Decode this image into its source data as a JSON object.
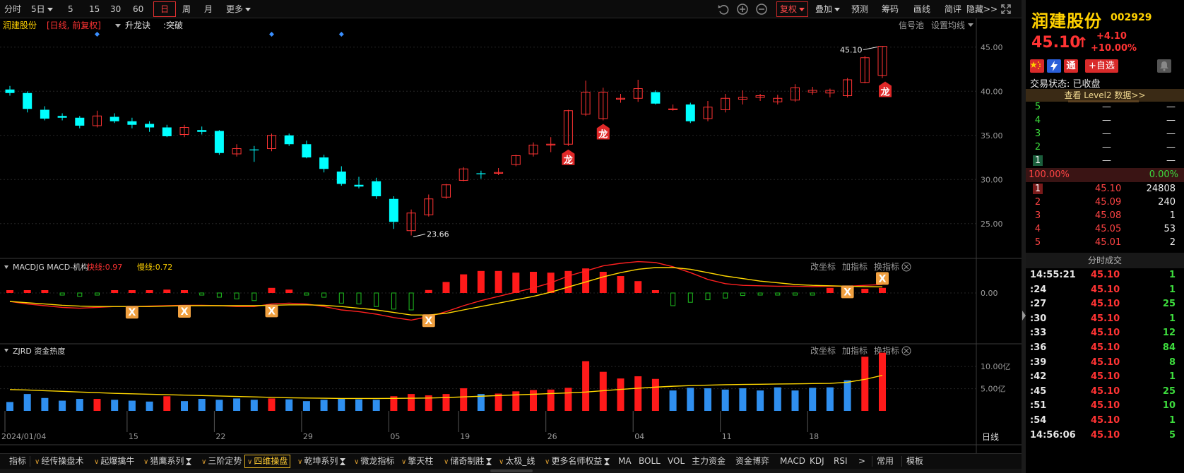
{
  "toolbar": {
    "left": [
      "分时",
      "5日",
      "5",
      "15",
      "30",
      "60",
      "日",
      "周",
      "月",
      "更多"
    ],
    "active": "日",
    "right": [
      "复权",
      "叠加",
      "预测",
      "筹码",
      "画线",
      "简评",
      "隐藏>>"
    ]
  },
  "chart_header": {
    "name": "润建股份",
    "period": "[日线, 前复权]",
    "indicator": "升龙诀",
    "signal": ":突破",
    "right1": "信号池",
    "right2": "设置均线"
  },
  "price_axis": [
    "45.00",
    "40.00",
    "35.00",
    "30.00",
    "25.00"
  ],
  "annotations": {
    "high": "45.10",
    "low": "23.66",
    "dragon": "龙"
  },
  "macd_panel": {
    "title": "MACDJG MACD-机构",
    "fast": "快线:0.97",
    "slow": "慢线:0.72",
    "axis": [
      "0.00"
    ],
    "buttons": [
      "改坐标",
      "加指标",
      "换指标"
    ],
    "cross_mark": "X"
  },
  "fund_panel": {
    "title": "ZJRD 资金热度",
    "axis": [
      "10.00亿",
      "5.00亿"
    ],
    "buttons": [
      "改坐标",
      "加指标",
      "换指标"
    ]
  },
  "date_axis": [
    "2024/01/04",
    "15",
    "22",
    "29",
    "05",
    "19",
    "26",
    "04",
    "11",
    "18"
  ],
  "timeframe_label": "日线",
  "bottom_tabs": [
    "指标",
    "经传操盘术",
    "起爆擒牛",
    "猎鹰系列",
    "三阶定势",
    "四维操盘",
    "乾坤系列",
    "微龙指标",
    "擎天柱",
    "储奇制胜",
    "太极_线",
    "更多名师权益",
    "MA",
    "BOLL",
    "VOL",
    "主力资金",
    "资金博弈",
    "MACD",
    "KDJ",
    "RSI",
    ">",
    "常用",
    "模板"
  ],
  "bottom_selected": "四维操盘",
  "stock": {
    "name": "润建股份",
    "code": "002929",
    "price": "45.10",
    "arrow": "↑",
    "change": "+4.10",
    "change_pct": "+10.00%",
    "icons": [
      "通"
    ],
    "fav": "+自选",
    "trade_state": "交易状态: 已收盘",
    "level2": "查看 Level2 数据>>"
  },
  "order_book": {
    "asks": [
      {
        "level": "5",
        "price": "—",
        "vol": "—"
      },
      {
        "level": "4",
        "price": "—",
        "vol": "—"
      },
      {
        "level": "3",
        "price": "—",
        "vol": "—"
      },
      {
        "level": "2",
        "price": "—",
        "vol": "—"
      },
      {
        "level": "1",
        "price": "—",
        "vol": "—"
      }
    ],
    "bid_ratio": "100.00%",
    "ask_ratio": "0.00%",
    "bids": [
      {
        "level": "1",
        "price": "45.10",
        "vol": "24808"
      },
      {
        "level": "2",
        "price": "45.09",
        "vol": "240"
      },
      {
        "level": "3",
        "price": "45.08",
        "vol": "1"
      },
      {
        "level": "4",
        "price": "45.05",
        "vol": "53"
      },
      {
        "level": "5",
        "price": "45.01",
        "vol": "2"
      }
    ]
  },
  "trades_header": "分时成交",
  "trades": [
    {
      "t": "14:55:21",
      "p": "45.10",
      "q": "1"
    },
    {
      "t": ":24",
      "p": "45.10",
      "q": "1"
    },
    {
      "t": ":27",
      "p": "45.10",
      "q": "25"
    },
    {
      "t": ":30",
      "p": "45.10",
      "q": "1"
    },
    {
      "t": ":33",
      "p": "45.10",
      "q": "12"
    },
    {
      "t": ":36",
      "p": "45.10",
      "q": "84"
    },
    {
      "t": ":39",
      "p": "45.10",
      "q": "8"
    },
    {
      "t": ":42",
      "p": "45.10",
      "q": "1"
    },
    {
      "t": ":45",
      "p": "45.10",
      "q": "25"
    },
    {
      "t": ":51",
      "p": "45.10",
      "q": "10"
    },
    {
      "t": ":54",
      "p": "45.10",
      "q": "1"
    },
    {
      "t": "14:56:06",
      "p": "45.10",
      "q": "5"
    }
  ],
  "colors": {
    "up": "#ff3333",
    "down": "#00ffff",
    "ma": "#ffd700",
    "macd_fast": "#ff2020",
    "fund_up": "#ff1a1a",
    "fund_down": "#2f8fef"
  },
  "chart_data": {
    "type": "candlestick",
    "ohlc": [
      [
        40.2,
        40.6,
        39.5,
        39.8
      ],
      [
        39.8,
        40.0,
        37.6,
        38.0
      ],
      [
        37.9,
        38.3,
        36.7,
        36.9
      ],
      [
        37.2,
        37.5,
        36.7,
        37.0
      ],
      [
        37.0,
        37.2,
        35.8,
        36.1
      ],
      [
        36.1,
        37.8,
        35.9,
        37.2
      ],
      [
        37.1,
        37.5,
        36.4,
        36.6
      ],
      [
        36.6,
        37.0,
        35.8,
        36.2
      ],
      [
        36.3,
        36.6,
        35.4,
        35.9
      ],
      [
        35.9,
        36.2,
        34.8,
        34.9
      ],
      [
        35.1,
        36.2,
        34.8,
        35.9
      ],
      [
        35.6,
        36.0,
        35.1,
        35.4
      ],
      [
        35.5,
        35.6,
        32.8,
        33.0
      ],
      [
        32.9,
        34.0,
        32.6,
        33.5
      ],
      [
        33.4,
        33.8,
        32.0,
        33.3
      ],
      [
        33.5,
        35.2,
        33.2,
        35.0
      ],
      [
        35.0,
        35.2,
        33.8,
        34.0
      ],
      [
        34.0,
        34.4,
        32.4,
        32.5
      ],
      [
        32.5,
        32.8,
        30.8,
        31.2
      ],
      [
        30.9,
        31.5,
        29.3,
        29.5
      ],
      [
        29.4,
        30.3,
        29.0,
        29.2
      ],
      [
        29.8,
        30.2,
        27.8,
        28.1
      ],
      [
        27.8,
        28.1,
        24.4,
        25.2
      ],
      [
        24.2,
        26.6,
        23.66,
        26.2
      ],
      [
        26.0,
        28.3,
        25.8,
        27.8
      ],
      [
        28.0,
        29.5,
        27.8,
        29.4
      ],
      [
        29.9,
        31.4,
        29.8,
        31.2
      ],
      [
        30.7,
        31.0,
        30.1,
        30.6
      ],
      [
        30.7,
        31.3,
        30.5,
        30.8
      ],
      [
        31.7,
        32.8,
        31.5,
        32.7
      ],
      [
        32.9,
        34.2,
        32.6,
        33.9
      ],
      [
        34.0,
        34.8,
        33.1,
        34.0
      ],
      [
        34.0,
        37.9,
        33.8,
        37.8
      ],
      [
        37.4,
        41.2,
        37.2,
        39.9
      ],
      [
        36.9,
        40.4,
        36.7,
        39.9
      ],
      [
        39.1,
        39.7,
        38.7,
        39.2
      ],
      [
        39.2,
        41.3,
        38.8,
        40.3
      ],
      [
        39.9,
        40.1,
        38.5,
        38.6
      ],
      [
        38.0,
        38.5,
        37.8,
        38.0
      ],
      [
        38.5,
        38.7,
        36.4,
        36.6
      ],
      [
        36.9,
        38.9,
        36.6,
        38.2
      ],
      [
        37.9,
        39.7,
        37.6,
        39.2
      ],
      [
        39.1,
        40.1,
        38.5,
        39.3
      ],
      [
        39.3,
        39.7,
        38.9,
        39.5
      ],
      [
        38.8,
        39.6,
        38.5,
        39.2
      ],
      [
        39.0,
        40.8,
        38.8,
        40.4
      ],
      [
        39.9,
        40.5,
        39.6,
        40.1
      ],
      [
        39.8,
        40.3,
        39.3,
        40.1
      ],
      [
        39.5,
        41.5,
        39.3,
        41.3
      ],
      [
        41.0,
        44.0,
        40.9,
        43.8
      ],
      [
        41.8,
        45.1,
        41.5,
        45.1
      ]
    ],
    "dragon_signals": [
      32,
      34,
      50
    ],
    "top_markers": [
      5,
      15,
      19
    ],
    "macd": {
      "hist": [
        0.3,
        0.3,
        0.1,
        -0.2,
        -0.4,
        -0.2,
        0.2,
        0.3,
        0.25,
        0.4,
        0.3,
        -0.1,
        -0.5,
        -0.7,
        -0.9,
        0.6,
        0.4,
        -0.2,
        -0.5,
        -1.2,
        -1.3,
        -1.6,
        -1.9,
        -2.0,
        0.35,
        1.3,
        2.2,
        2.6,
        2.6,
        2.4,
        2.5,
        2.4,
        2.6,
        2.9,
        2.5,
        2.0,
        1.4,
        0.3,
        -1.5,
        -1.1,
        -0.8,
        -0.6,
        -0.3,
        -0.2,
        -0.15,
        -0.1,
        -0.05,
        0.6,
        0.55,
        0.5,
        0.6
      ],
      "fast": [
        -1.0,
        -1.3,
        -1.5,
        -1.7,
        -1.8,
        -1.7,
        -1.6,
        -1.6,
        -1.55,
        -1.5,
        -1.45,
        -1.45,
        -1.5,
        -1.6,
        -1.6,
        -1.3,
        -1.2,
        -1.3,
        -1.6,
        -2.0,
        -2.2,
        -2.5,
        -2.9,
        -3.2,
        -2.8,
        -2.2,
        -1.5,
        -0.9,
        -0.4,
        0.1,
        0.6,
        1.2,
        2.0,
        2.6,
        3.2,
        3.5,
        3.7,
        3.6,
        3.1,
        2.4,
        1.6,
        1.1,
        0.9,
        0.85,
        0.8,
        0.8,
        0.75,
        0.8,
        0.8,
        0.9,
        1.0
      ],
      "slow": [
        -1.0,
        -1.15,
        -1.3,
        -1.45,
        -1.55,
        -1.6,
        -1.6,
        -1.6,
        -1.6,
        -1.55,
        -1.5,
        -1.5,
        -1.5,
        -1.5,
        -1.5,
        -1.45,
        -1.4,
        -1.4,
        -1.45,
        -1.6,
        -1.8,
        -2.0,
        -2.3,
        -2.6,
        -2.6,
        -2.4,
        -2.0,
        -1.6,
        -1.2,
        -0.8,
        -0.4,
        0.1,
        0.7,
        1.3,
        1.9,
        2.4,
        2.8,
        3.0,
        3.0,
        2.8,
        2.4,
        2.0,
        1.7,
        1.4,
        1.2,
        1.0,
        0.9,
        0.85,
        0.8,
        0.75,
        0.72
      ],
      "cross_marks": [
        7,
        10,
        15,
        24,
        48,
        50
      ]
    },
    "fund": {
      "bars": [
        2.0,
        3.8,
        2.9,
        2.3,
        2.7,
        2.7,
        2.5,
        2.3,
        2.1,
        3.3,
        2.2,
        2.7,
        2.5,
        2.8,
        2.5,
        2.8,
        2.6,
        2.2,
        2.5,
        2.7,
        2.6,
        2.5,
        3.3,
        3.8,
        3.5,
        3.8,
        5.1,
        3.8,
        3.9,
        4.4,
        4.7,
        4.8,
        5.2,
        11.2,
        8.8,
        7.3,
        7.8,
        7.2,
        4.6,
        5.2,
        5.1,
        4.8,
        5.1,
        4.6,
        5.3,
        4.6,
        5.2,
        5.3,
        6.9,
        12.2,
        13.1
      ],
      "up": [
        0,
        0,
        0,
        0,
        0,
        1,
        0,
        0,
        0,
        1,
        0,
        0,
        0,
        0,
        0,
        1,
        0,
        0,
        0,
        0,
        0,
        0,
        1,
        1,
        1,
        1,
        1,
        0,
        1,
        1,
        1,
        1,
        1,
        1,
        1,
        1,
        1,
        1,
        0,
        0,
        0,
        0,
        0,
        0,
        0,
        0,
        0,
        0,
        0,
        1,
        1
      ],
      "ma": [
        4.8,
        4.7,
        4.55,
        4.4,
        4.25,
        4.1,
        3.95,
        3.85,
        3.75,
        3.65,
        3.55,
        3.45,
        3.35,
        3.25,
        3.15,
        3.05,
        2.95,
        2.9,
        2.85,
        2.8,
        2.8,
        2.8,
        2.82,
        2.85,
        2.9,
        3.0,
        3.15,
        3.3,
        3.45,
        3.6,
        3.75,
        3.9,
        4.05,
        4.25,
        4.55,
        4.85,
        5.1,
        5.35,
        5.55,
        5.7,
        5.8,
        5.9,
        5.95,
        6.0,
        6.05,
        6.1,
        6.15,
        6.2,
        6.45,
        7.1,
        8.0
      ],
      "ylim": [
        0,
        14
      ]
    },
    "ylim": [
      22.5,
      46.5
    ]
  }
}
